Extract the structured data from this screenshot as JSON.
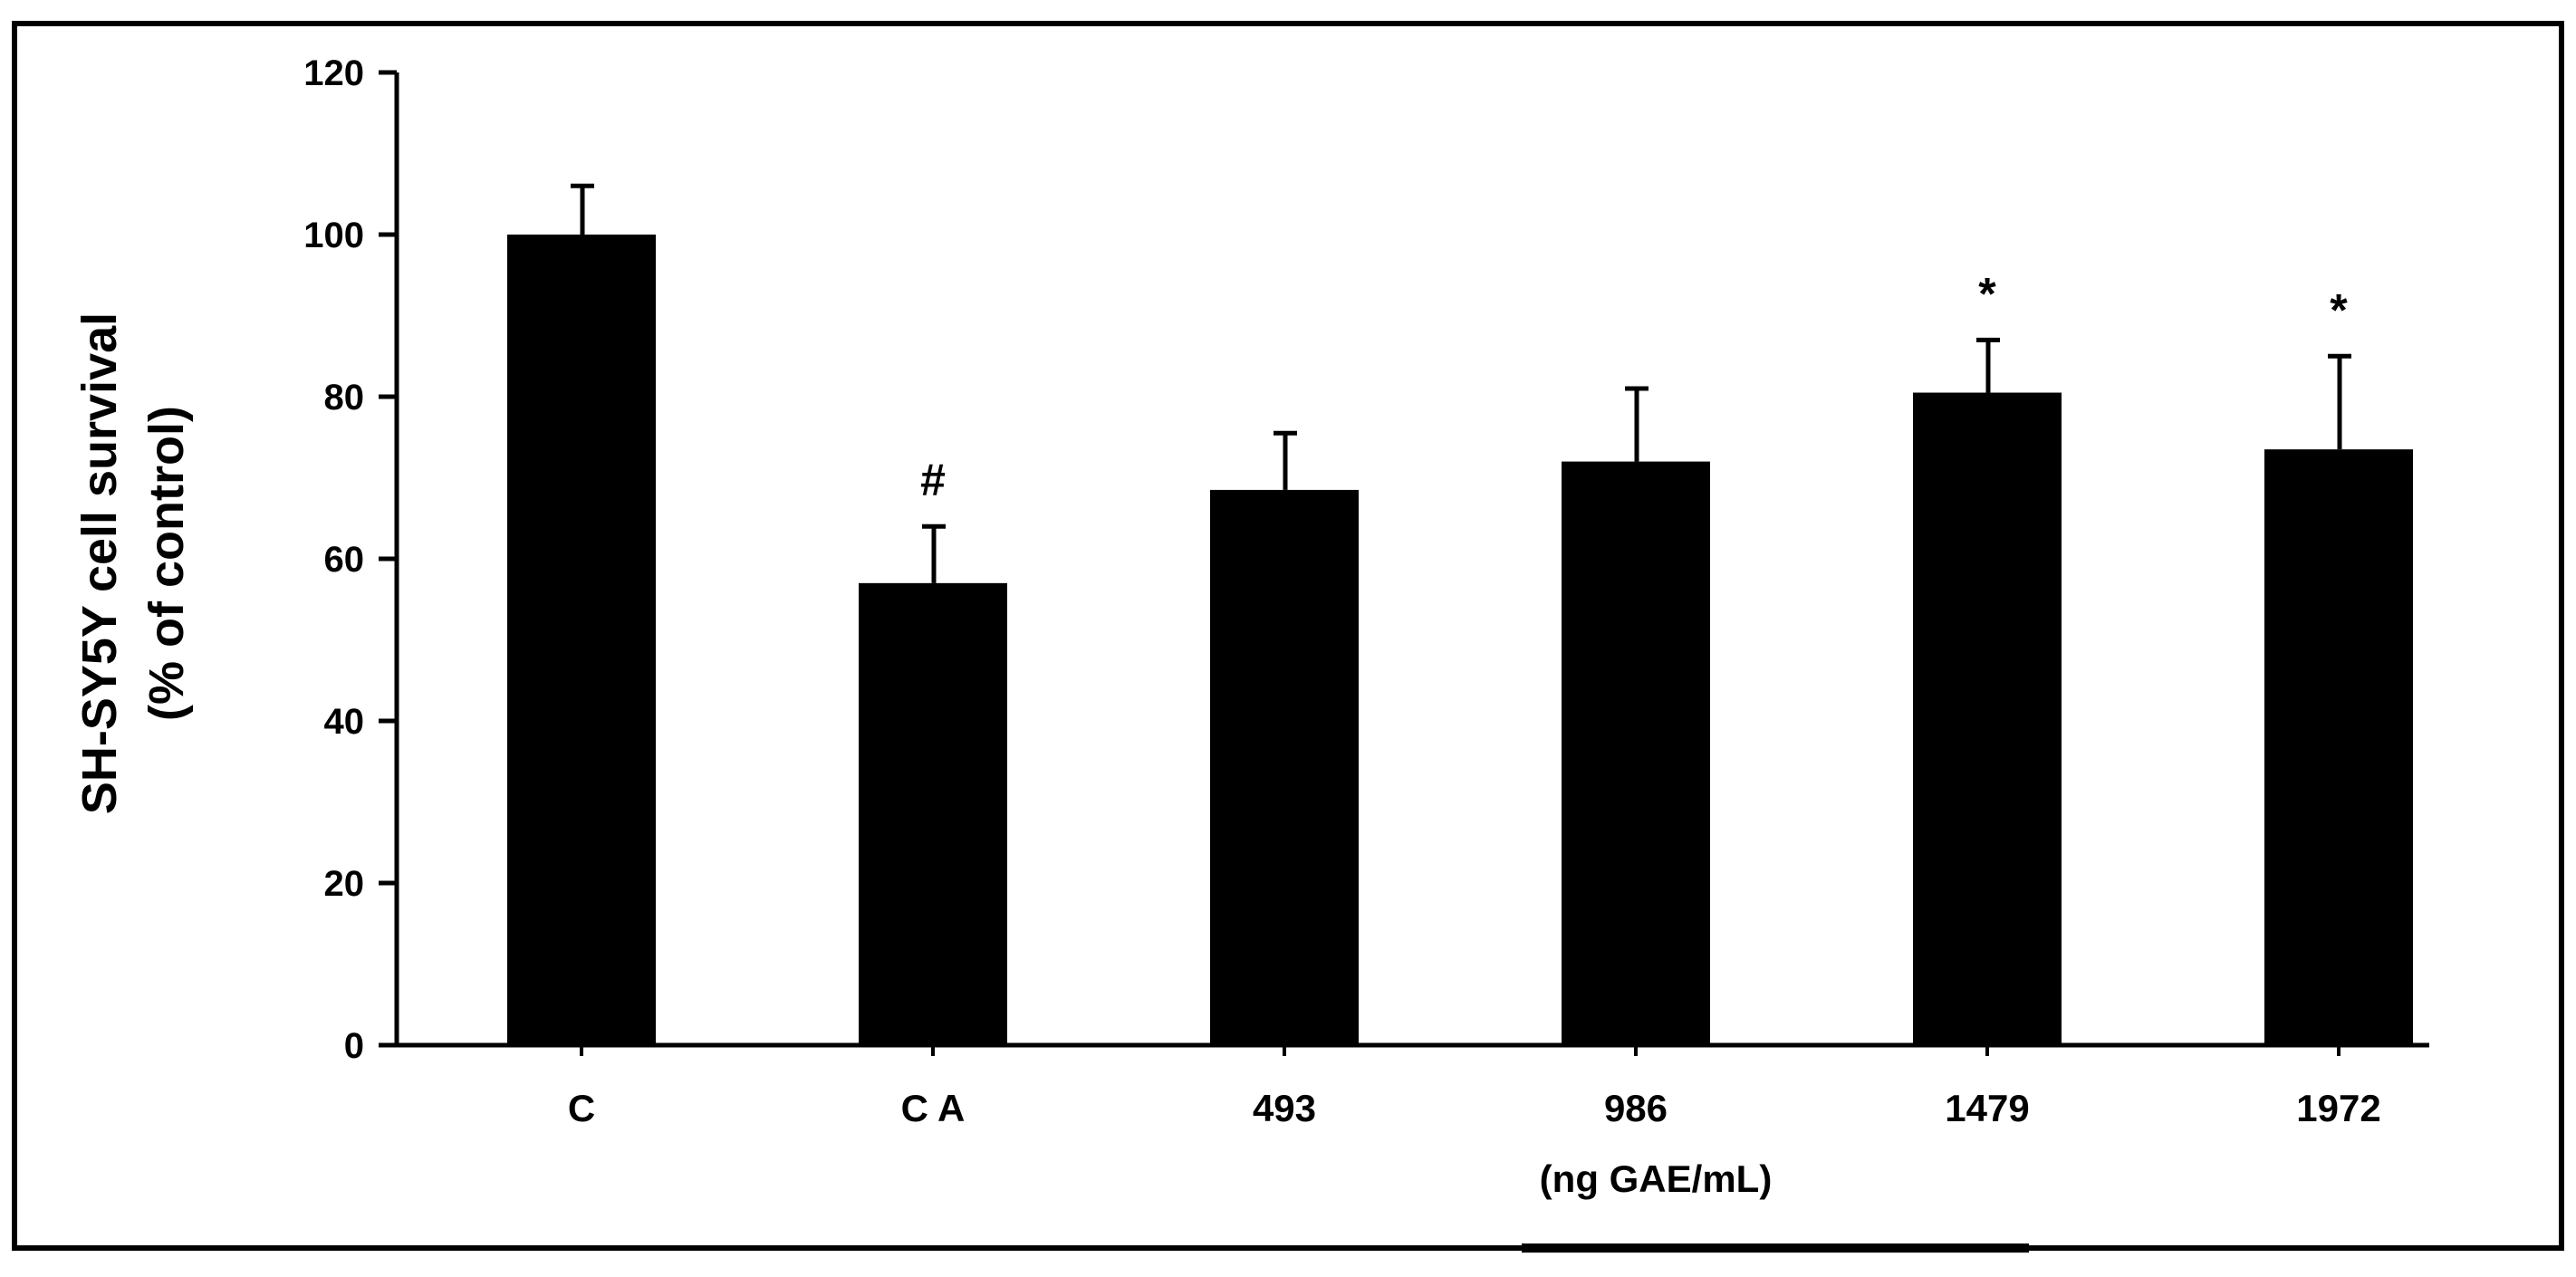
{
  "chart_data": {
    "type": "bar",
    "ylabel": [
      "SH-SY5Y cell survival",
      "(% of control)"
    ],
    "xlabel": "(ng GAE/mL)",
    "categories": [
      "C",
      "C A",
      "493",
      "986",
      "1479",
      "1972"
    ],
    "values": [
      100,
      57,
      68.5,
      72,
      80.5,
      73.5
    ],
    "errors": [
      6,
      7,
      7,
      9,
      6.5,
      11.5
    ],
    "annotations": [
      "",
      "#",
      "",
      "",
      "*",
      "*"
    ],
    "ylim": [
      0,
      120
    ],
    "yticks": [
      0,
      20,
      40,
      60,
      80,
      100,
      120
    ],
    "grid": false,
    "bar_color": "#000000",
    "frame_color": "#000000"
  }
}
